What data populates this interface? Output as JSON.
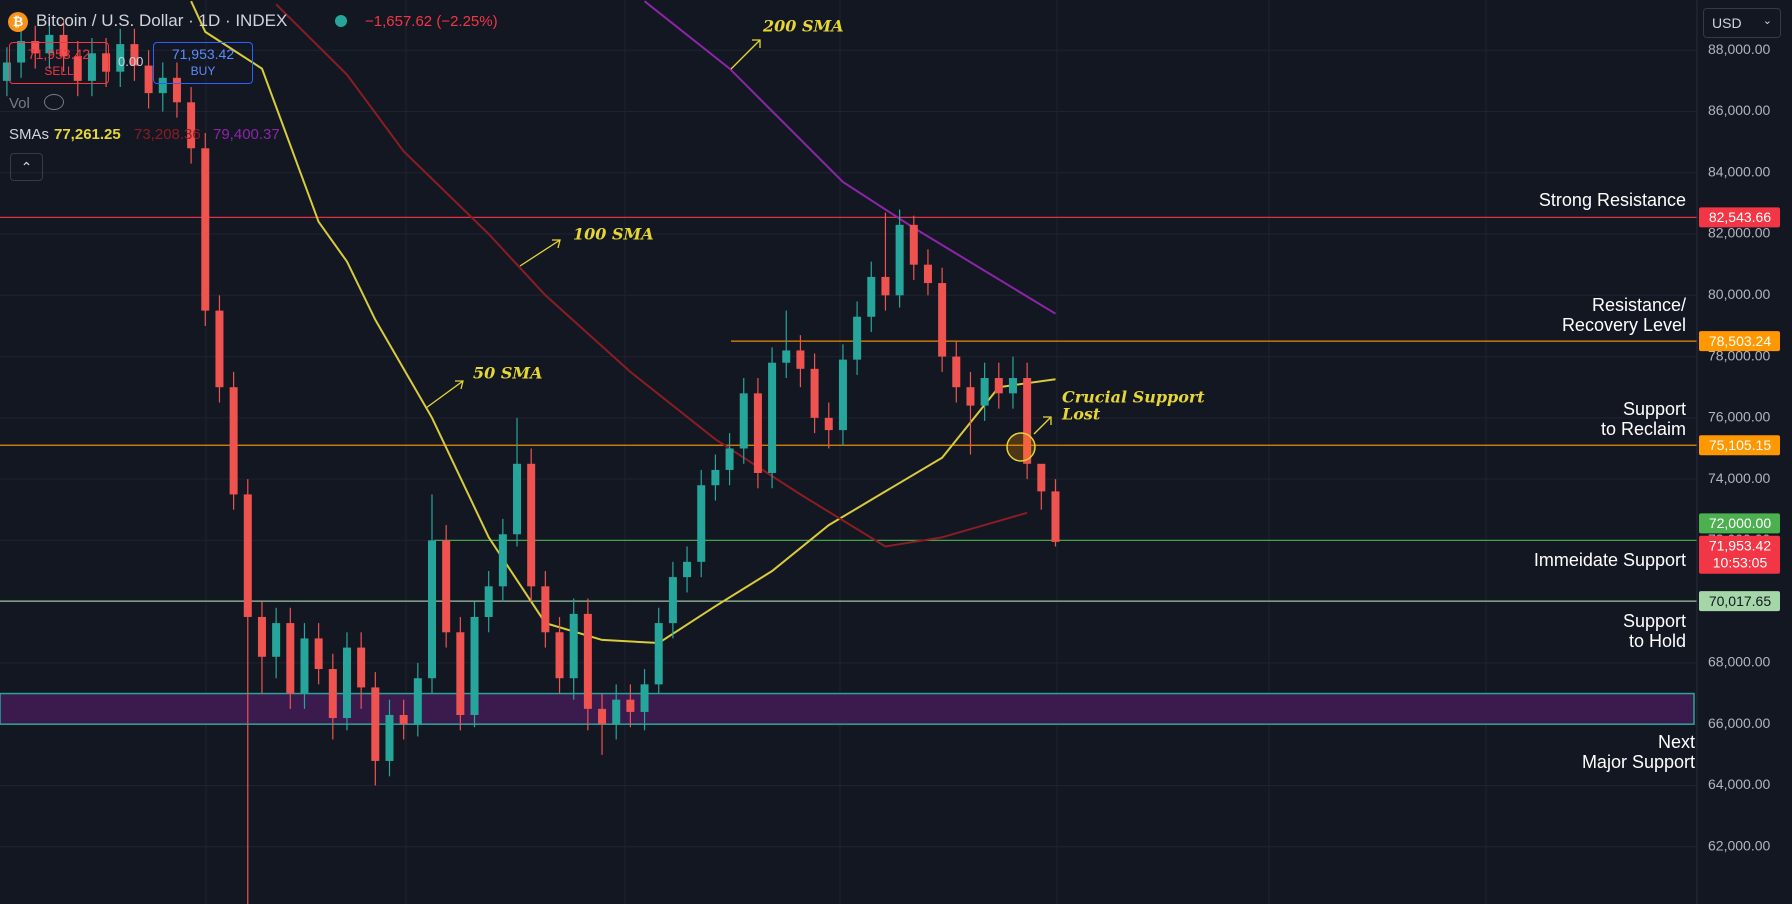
{
  "header": {
    "symbol": "Bitcoin / U.S. Dollar · 1D · INDEX",
    "change": "−1,657.62 (−2.25%)",
    "sell_price": "71,953.42",
    "sell": "SELL",
    "spread": "0.00",
    "buy_price": "71,953.42",
    "buy": "BUY",
    "vol": "Vol",
    "sma_label": "SMAs",
    "sma_values": [
      "77,261.25",
      "73,208.36",
      "79,400.37"
    ],
    "currency": "USD"
  },
  "chart_data": {
    "type": "candlestick",
    "up_color": "#26a69a",
    "down_color": "#ef5350",
    "grid": true,
    "ylim": [
      60130,
      89640
    ],
    "yticks": [
      {
        "value": 62000,
        "label": "62,000.00"
      },
      {
        "value": 64000,
        "label": "64,000.00"
      },
      {
        "value": 66000,
        "label": "66,000.00"
      },
      {
        "value": 68000,
        "label": "68,000.00"
      },
      {
        "value": 70000,
        "label": "70,000.00"
      },
      {
        "value": 72000,
        "label": "72,000.00"
      },
      {
        "value": 74000,
        "label": "74,000.00"
      },
      {
        "value": 76000,
        "label": "76,000.00"
      },
      {
        "value": 78000,
        "label": "78,000.00"
      },
      {
        "value": 80000,
        "label": "80,000.00"
      },
      {
        "value": 82000,
        "label": "82,000.00"
      },
      {
        "value": 84000,
        "label": "84,000.00"
      },
      {
        "value": 86000,
        "label": "86,000.00"
      },
      {
        "value": 88000,
        "label": "88,000.00"
      }
    ],
    "open": [
      87000,
      87600,
      88300,
      87900,
      88500,
      87800,
      87000,
      87900,
      87300,
      88200,
      87500,
      86600,
      87100,
      86300,
      84800,
      79500,
      77000,
      73500,
      69500,
      68200,
      69300,
      67000,
      68800,
      67800,
      66200,
      68500,
      67200,
      64800,
      66300,
      66000,
      67500,
      72000,
      69000,
      66300,
      69500,
      70500,
      72200,
      74500,
      70500,
      69000,
      67500,
      69600,
      66500,
      66000,
      66800,
      66400,
      67300,
      69300,
      70800,
      71300,
      73800,
      74300,
      75000,
      76800,
      74200,
      77800,
      78200,
      77600,
      76000,
      75600,
      77900,
      79300,
      80600,
      80000,
      82300,
      81000,
      80400,
      78000,
      77000,
      76400,
      77300,
      76800,
      77300,
      74500,
      73600
    ],
    "high": [
      88100,
      88800,
      88800,
      89000,
      89000,
      88300,
      88400,
      88400,
      88700,
      88700,
      88000,
      87600,
      87600,
      86800,
      85300,
      80000,
      77500,
      74000,
      70000,
      69800,
      69800,
      69300,
      69300,
      68300,
      69000,
      69000,
      67700,
      66800,
      66800,
      68000,
      73500,
      72500,
      69500,
      70000,
      71000,
      72700,
      76000,
      75000,
      71000,
      69500,
      70100,
      70100,
      67000,
      67300,
      67300,
      67800,
      69800,
      71300,
      71800,
      74300,
      74800,
      75500,
      77300,
      77300,
      78300,
      79500,
      78700,
      78100,
      76500,
      78400,
      79800,
      81100,
      82700,
      82800,
      82600,
      81500,
      80900,
      78500,
      77500,
      77800,
      77800,
      78000,
      77800,
      74300,
      74000
    ],
    "low": [
      86500,
      87100,
      87400,
      87400,
      87300,
      86500,
      86500,
      86800,
      86800,
      87000,
      86100,
      86000,
      85800,
      84300,
      79000,
      76500,
      73000,
      60100,
      67000,
      67500,
      66500,
      66500,
      67300,
      65500,
      65800,
      66500,
      64000,
      64300,
      65500,
      65600,
      67000,
      68500,
      65800,
      65900,
      69000,
      70000,
      71800,
      70000,
      68500,
      67000,
      66800,
      65800,
      65000,
      65500,
      65900,
      65800,
      67000,
      68800,
      70300,
      70800,
      73300,
      73800,
      74500,
      73700,
      73700,
      77300,
      77000,
      75500,
      75000,
      75100,
      77400,
      78800,
      79500,
      79600,
      80500,
      80000,
      77500,
      76500,
      74800,
      75900,
      76300,
      76300,
      74000,
      73000,
      71800
    ],
    "close": [
      87600,
      88300,
      87900,
      88500,
      87800,
      87000,
      87900,
      87300,
      88200,
      87500,
      86600,
      87100,
      86300,
      84800,
      79500,
      77000,
      73500,
      69500,
      68200,
      69300,
      67000,
      68800,
      67800,
      66200,
      68500,
      67200,
      64800,
      66300,
      66000,
      67500,
      72000,
      69000,
      66300,
      69500,
      70500,
      72200,
      74500,
      70500,
      69000,
      67500,
      69600,
      66500,
      66000,
      66800,
      66400,
      67300,
      69300,
      70800,
      71300,
      73800,
      74300,
      75000,
      76800,
      74200,
      77800,
      78200,
      77600,
      76000,
      75600,
      77900,
      79300,
      80600,
      80000,
      82300,
      81000,
      80400,
      78000,
      77000,
      76400,
      77300,
      76800,
      77300,
      74500,
      73600,
      71950
    ],
    "smas": [
      {
        "name": "50 SMA",
        "color": "#d9cc3a",
        "legend_value": "77,261.25",
        "x": [
          13,
          14,
          18,
          22,
          24,
          26,
          30,
          34,
          38,
          42,
          46,
          50,
          54,
          58,
          62,
          66,
          70,
          74
        ],
        "values": [
          89600,
          88600,
          87400,
          82400,
          81100,
          79200,
          76000,
          72100,
          69300,
          68750,
          68650,
          69850,
          71000,
          72500,
          73600,
          74700,
          77000,
          77260
        ]
      },
      {
        "name": "100 SMA",
        "color": "#8b1c24",
        "legend_value": "73,208.36",
        "x": [
          19,
          24,
          28,
          34,
          38,
          44,
          50,
          56,
          62,
          66,
          72
        ],
        "values": [
          89500,
          87200,
          84700,
          82000,
          80000,
          77500,
          75300,
          73500,
          71800,
          72100,
          72900
        ]
      },
      {
        "name": "200 SMA",
        "color": "#8e24aa",
        "legend_value": "79,400.37",
        "x": [
          45,
          51,
          59,
          64,
          74
        ],
        "values": [
          89600,
          87400,
          83700,
          82200,
          79400
        ]
      }
    ],
    "levels": [
      {
        "value": {
          "value": 82543.66,
          "label": "82,543.66"
        },
        "color": "#f23645",
        "text": [
          "Strong Resistance"
        ]
      },
      {
        "value": {
          "value": 78503.24,
          "label": "78,503.24"
        },
        "color": "#ff9800",
        "text": [
          "Resistance/",
          "Recovery Level"
        ]
      },
      {
        "value": {
          "value": 75105.15,
          "label": "75,105.15"
        },
        "color": "#ff9800",
        "text": [
          "Support",
          "to Reclaim"
        ]
      },
      {
        "value": {
          "value": 72000,
          "label": "72,000.00"
        },
        "color": "#4caf50",
        "text": [
          "Immeidate Support"
        ]
      },
      {
        "value": {
          "value": 70017.65,
          "label": "70,017.65"
        },
        "color": "#a5d6a7",
        "text": [
          "Support",
          "to Hold"
        ]
      }
    ],
    "zone": {
      "low": 66000,
      "high": 67000,
      "color": "#3b1a4e",
      "border": "#26a69a",
      "text": [
        "Next",
        "Major Support"
      ]
    },
    "last_price": {
      "value": 71953.42,
      "label": "71,953.42",
      "countdown": "10:53:05",
      "color": "#f23645"
    },
    "annotations": {
      "crucial": [
        "Crucial Support",
        "Lost"
      ],
      "color": "#e5d636"
    }
  }
}
